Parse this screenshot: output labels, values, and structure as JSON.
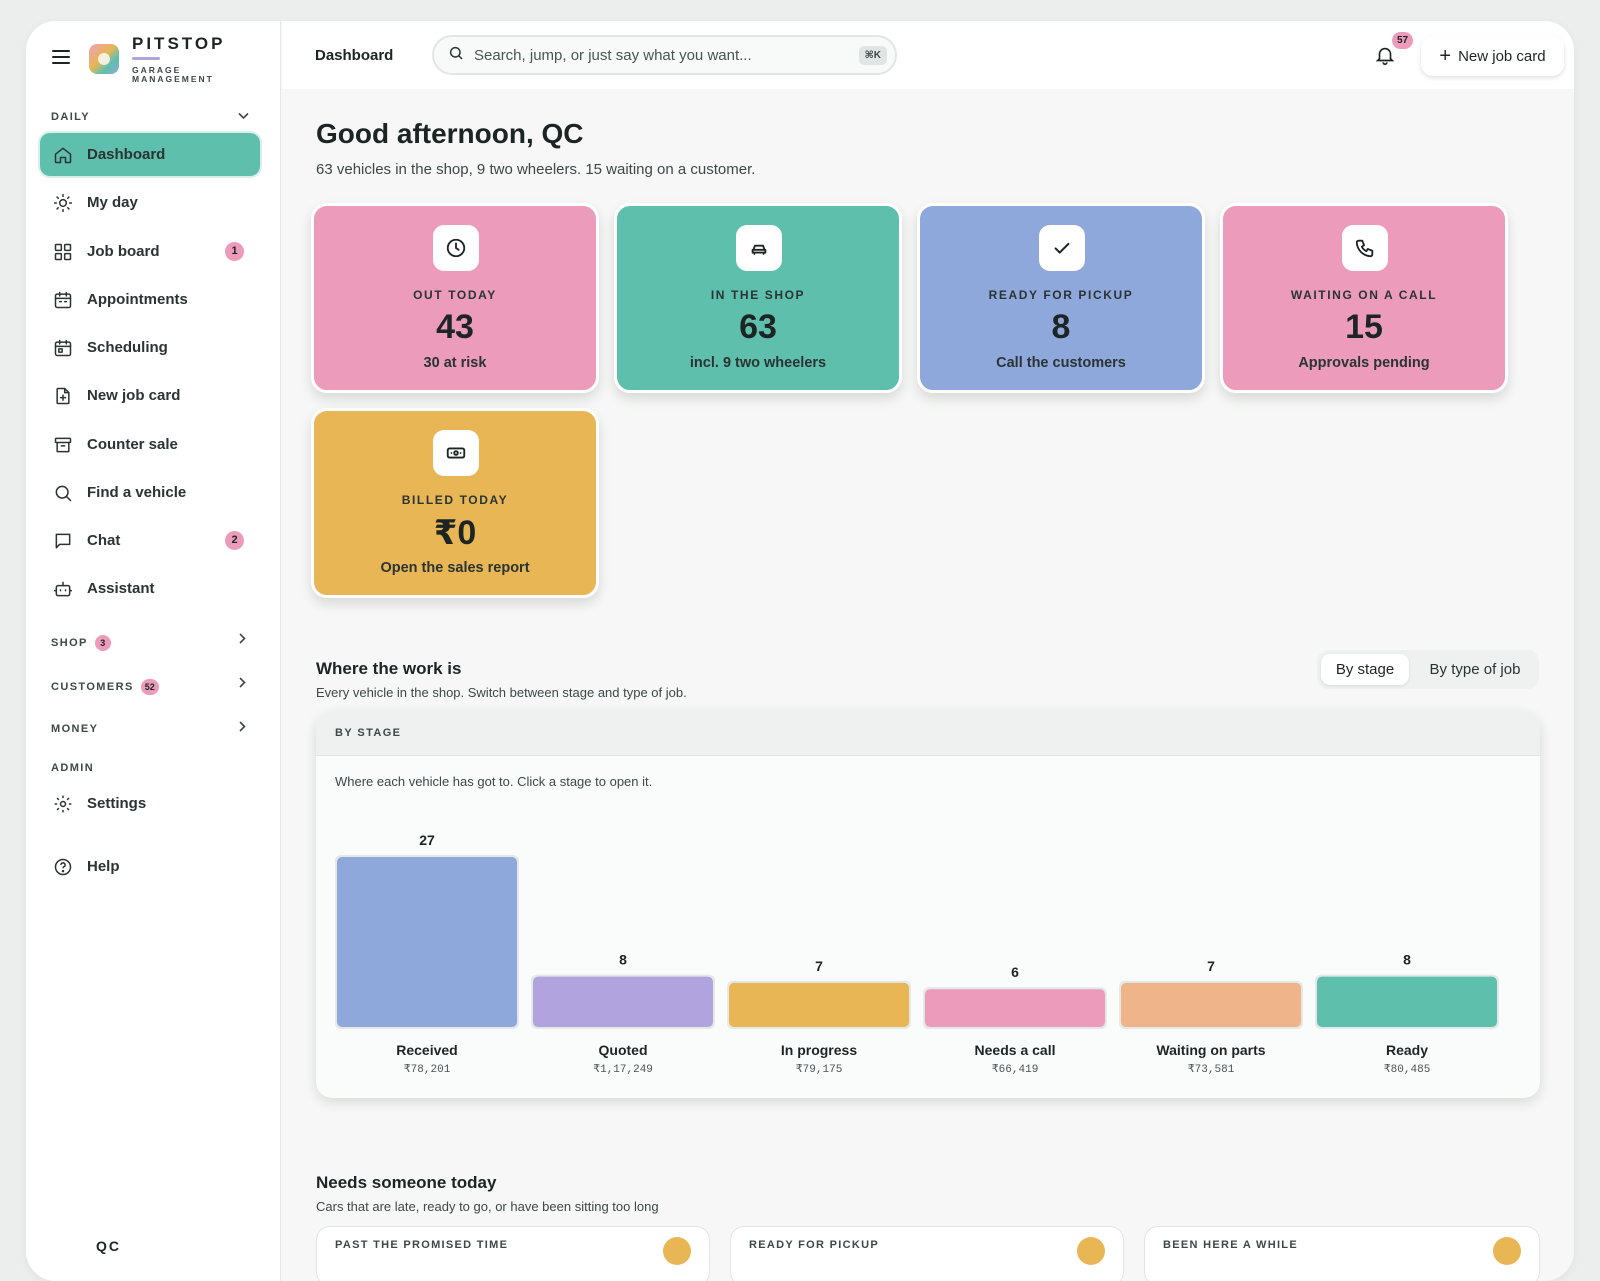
{
  "brand": {
    "name": "PITSTOP",
    "sub": "GARAGE MANAGEMENT"
  },
  "sidebar": {
    "daily_label": "DAILY",
    "items": [
      {
        "label": "Dashboard",
        "icon": "home-icon",
        "active": true,
        "badge": ""
      },
      {
        "label": "My day",
        "icon": "sun-icon",
        "badge": ""
      },
      {
        "label": "Job board",
        "icon": "grid-icon",
        "badge": "1"
      },
      {
        "label": "Appointments",
        "icon": "calendar-icon",
        "badge": ""
      },
      {
        "label": "Scheduling",
        "icon": "calendar-grid-icon",
        "badge": ""
      },
      {
        "label": "New job card",
        "icon": "file-plus-icon",
        "badge": ""
      },
      {
        "label": "Counter sale",
        "icon": "archive-icon",
        "badge": ""
      },
      {
        "label": "Find a vehicle",
        "icon": "search-icon",
        "badge": ""
      },
      {
        "label": "Chat",
        "icon": "chat-icon",
        "badge": "2"
      },
      {
        "label": "Assistant",
        "icon": "bot-icon",
        "badge": ""
      }
    ],
    "sections": [
      {
        "label": "SHOP",
        "count": "3"
      },
      {
        "label": "CUSTOMERS",
        "count": "52"
      },
      {
        "label": "MONEY",
        "count": ""
      }
    ],
    "admin_label": "ADMIN",
    "settings_label": "Settings",
    "help_label": "Help",
    "footer_text": "QC"
  },
  "topbar": {
    "breadcrumb": "Dashboard",
    "search_placeholder": "Search, jump, or just say what you want...",
    "search_shortcut": "⌘K",
    "notifications_count": "57",
    "new_job_label": "New job card"
  },
  "greeting": {
    "title": "Good afternoon, QC",
    "subtitle": "63 vehicles in the shop, 9 two wheelers. 15 waiting on a customer."
  },
  "stats": [
    {
      "label": "OUT TODAY",
      "value": "43",
      "sub": "30 at risk",
      "icon": "clock-icon",
      "color": "#ec9cba"
    },
    {
      "label": "IN THE SHOP",
      "value": "63",
      "sub": "incl. 9 two wheelers",
      "icon": "car-icon",
      "color": "#5fbfad"
    },
    {
      "label": "READY FOR PICKUP",
      "value": "8",
      "sub": "Call the customers",
      "icon": "check-icon",
      "color": "#8fa8dc"
    },
    {
      "label": "WAITING ON A CALL",
      "value": "15",
      "sub": "Approvals pending",
      "icon": "phone-icon",
      "color": "#ec9cba"
    },
    {
      "label": "BILLED TODAY",
      "value": "₹0",
      "sub": "Open the sales report",
      "icon": "cash-icon",
      "color": "#e8b655"
    }
  ],
  "work": {
    "title": "Where the work is",
    "subtitle": "Every vehicle in the shop. Switch between stage and type of job.",
    "toggle": [
      "By stage",
      "By type of job"
    ],
    "card_header": "BY STAGE",
    "card_note": "Where each vehicle has got to. Click a stage to open it."
  },
  "chart_data": {
    "type": "bar",
    "title": "",
    "categories": [
      "Received",
      "Quoted",
      "In progress",
      "Needs a call",
      "Waiting on parts",
      "Ready"
    ],
    "values": [
      27,
      8,
      7,
      6,
      7,
      8
    ],
    "amounts": [
      "₹78,201",
      "₹1,17,249",
      "₹79,175",
      "₹66,419",
      "₹73,581",
      "₹80,485"
    ],
    "colors": [
      "#8fa8dc",
      "#b1a3dd",
      "#e8b655",
      "#ec9cba",
      "#efb48a",
      "#5fbfad"
    ],
    "ylim": [
      0,
      27
    ],
    "grid": false,
    "legend": "none"
  },
  "needs": {
    "title": "Needs someone today",
    "subtitle": "Cars that are late, ready to go, or have been sitting too long",
    "cards": [
      "PAST THE PROMISED TIME",
      "READY FOR PICKUP",
      "BEEN HERE A WHILE"
    ]
  }
}
